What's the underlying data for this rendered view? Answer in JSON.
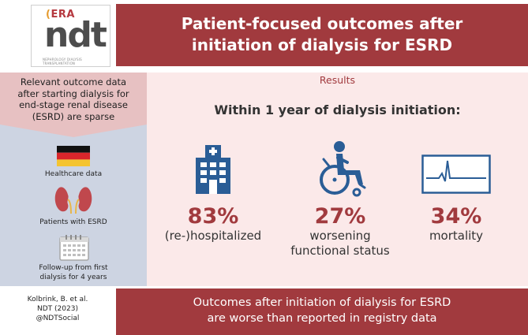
{
  "header": {
    "logo": {
      "era": "ERA",
      "ndt": "ndt",
      "tagline": "NEPHROLOGY DIALYSIS TRANSPLANTATION"
    },
    "title_line1": "Patient-focused outcomes after",
    "title_line2": "initiation of dialysis for ESRD"
  },
  "left": {
    "intro": [
      "Relevant outcome data",
      "after starting dialysis for",
      "end-stage renal disease",
      "(ESRD) are sparse"
    ],
    "items": [
      {
        "icon": "germany-flag-icon",
        "label": [
          "Healthcare data"
        ]
      },
      {
        "icon": "kidneys-icon",
        "label": [
          "Patients with ESRD"
        ]
      },
      {
        "icon": "calendar-icon",
        "label": [
          "Follow-up from first",
          "dialysis for 4 years"
        ]
      }
    ]
  },
  "results": {
    "label": "Results",
    "heading": "Within 1 year of dialysis initiation:",
    "stats": [
      {
        "icon": "hospital-icon",
        "value": "83%",
        "label": [
          "(re-)hospitalized"
        ]
      },
      {
        "icon": "wheelchair-icon",
        "value": "27%",
        "label": [
          "worsening",
          "functional status"
        ]
      },
      {
        "icon": "ecg-flatline-icon",
        "value": "34%",
        "label": [
          "mortality"
        ]
      }
    ]
  },
  "footer": {
    "citation": [
      "Kolbrink, B. et al.",
      "NDT (2023)",
      "@NDTSocial"
    ],
    "conclusion_line1": "Outcomes after initiation of dialysis for ESRD",
    "conclusion_line2": "are worse than reported in registry data"
  },
  "colors": {
    "brand_red": "#a13a3e",
    "light_pink": "#fbe9e9",
    "left_blue": "#cdd4e2",
    "icon_blue": "#2a5d96"
  }
}
